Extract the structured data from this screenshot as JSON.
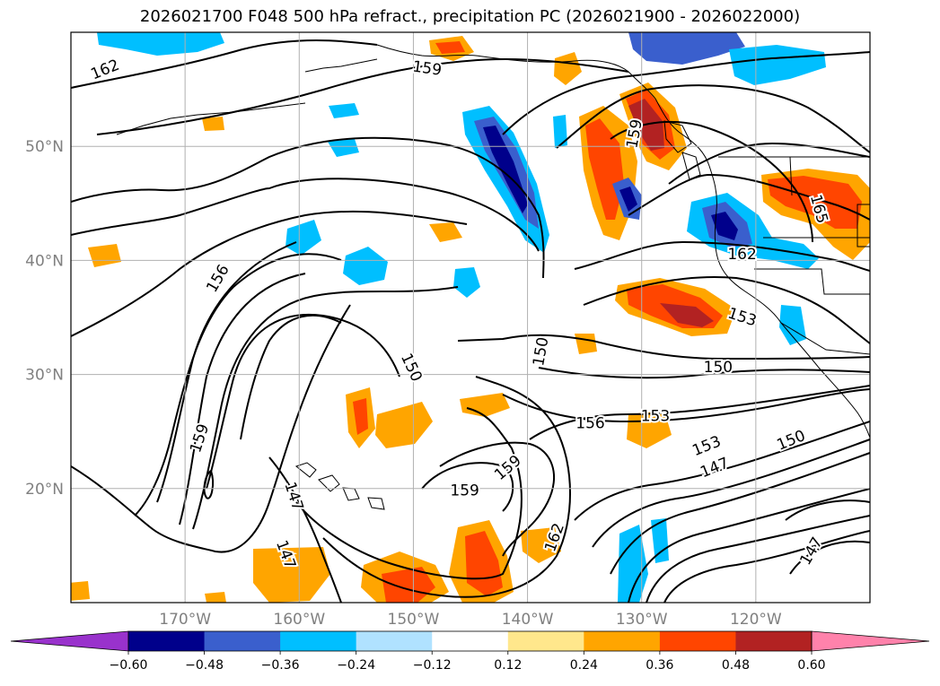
{
  "title": "2026021700 F048 500 hPa refract., precipitation PC (2026021900 - 2026022000)",
  "map": {
    "lon_range": [
      -180,
      -110
    ],
    "lat_range": [
      10,
      60
    ],
    "lon_ticks": [
      "170°W",
      "160°W",
      "150°W",
      "140°W",
      "130°W",
      "120°W"
    ],
    "lat_ticks": [
      "50°N",
      "40°N",
      "30°N",
      "20°N"
    ],
    "gridlines": true
  },
  "contour_labels": [
    {
      "text": "162",
      "lon": -177,
      "lat": 56.7,
      "angle": -22
    },
    {
      "text": "159",
      "lon": -148.8,
      "lat": 56.8,
      "angle": 8
    },
    {
      "text": "159",
      "lon": -130.6,
      "lat": 51.1,
      "angle": -80
    },
    {
      "text": "165",
      "lon": -114.5,
      "lat": 44.5,
      "angle": 75
    },
    {
      "text": "162",
      "lon": -121.2,
      "lat": 40.5,
      "angle": 0
    },
    {
      "text": "156",
      "lon": -167.1,
      "lat": 38.4,
      "angle": -60
    },
    {
      "text": "153",
      "lon": -121.2,
      "lat": 35.0,
      "angle": 18
    },
    {
      "text": "150",
      "lon": -138.8,
      "lat": 32.0,
      "angle": -80
    },
    {
      "text": "150",
      "lon": -150.2,
      "lat": 30.6,
      "angle": 65
    },
    {
      "text": "150",
      "lon": -123.3,
      "lat": 30.6,
      "angle": 0
    },
    {
      "text": "153",
      "lon": -128.8,
      "lat": 26.3,
      "angle": 0
    },
    {
      "text": "156",
      "lon": -134.5,
      "lat": 25.7,
      "angle": 0
    },
    {
      "text": "159",
      "lon": -168.7,
      "lat": 24.4,
      "angle": -72
    },
    {
      "text": "153",
      "lon": -124.3,
      "lat": 23.7,
      "angle": -22
    },
    {
      "text": "150",
      "lon": -116.9,
      "lat": 24.2,
      "angle": -22
    },
    {
      "text": "159",
      "lon": -141.7,
      "lat": 21.8,
      "angle": -40
    },
    {
      "text": "147",
      "lon": -123.6,
      "lat": 21.8,
      "angle": -22
    },
    {
      "text": "159",
      "lon": -145.5,
      "lat": 19.8,
      "angle": 0
    },
    {
      "text": "147",
      "lon": -160.5,
      "lat": 19.3,
      "angle": 72
    },
    {
      "text": "162",
      "lon": -137.6,
      "lat": 15.7,
      "angle": -70
    },
    {
      "text": "147",
      "lon": -161.2,
      "lat": 14.2,
      "angle": 70
    },
    {
      "text": "147",
      "lon": -115.1,
      "lat": 14.5,
      "angle": -60
    }
  ],
  "colorbar": {
    "labels": [
      "−0.60",
      "−0.48",
      "−0.36",
      "−0.24",
      "−0.12",
      "0.12",
      "0.24",
      "0.36",
      "0.48",
      "0.60"
    ],
    "colors": [
      "#9932cc",
      "#00008b",
      "#3a5fcd",
      "#00bfff",
      "#b0e2ff",
      "#ffffff",
      "#ffe78c",
      "#ffa500",
      "#ff4500",
      "#b22222",
      "#ff82ab"
    ]
  }
}
